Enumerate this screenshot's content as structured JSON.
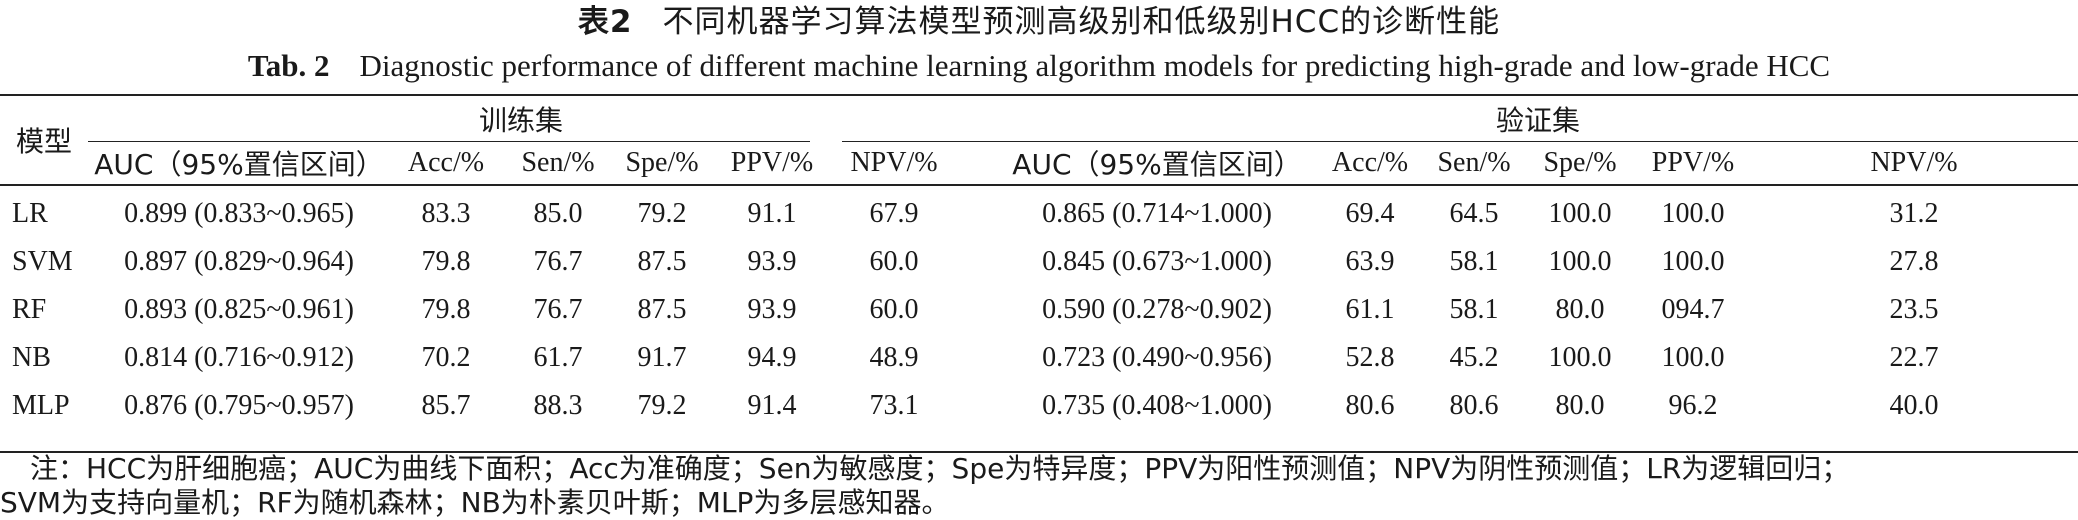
{
  "caption": {
    "cn_label": "表2",
    "cn_title": "不同机器学习算法模型预测高级别和低级别HCC的诊断性能",
    "en_label": "Tab. 2",
    "en_title": "Diagnostic performance of different machine learning algorithm models for predicting high-grade and low-grade HCC"
  },
  "table": {
    "model_header": "模型",
    "group_train": "训练集",
    "group_valid": "验证集",
    "columns": [
      "AUC（95%置信区间）",
      "Acc/%",
      "Sen/%",
      "Spe/%",
      "PPV/%",
      "NPV/%"
    ],
    "rows": [
      {
        "model": "LR",
        "train": [
          "0.899 (0.833~0.965)",
          "83.3",
          "85.0",
          "79.2",
          "91.1",
          "67.9"
        ],
        "valid": [
          "0.865 (0.714~1.000)",
          "69.4",
          "64.5",
          "100.0",
          "100.0",
          "31.2"
        ]
      },
      {
        "model": "SVM",
        "train": [
          "0.897 (0.829~0.964)",
          "79.8",
          "76.7",
          "87.5",
          "93.9",
          "60.0"
        ],
        "valid": [
          "0.845 (0.673~1.000)",
          "63.9",
          "58.1",
          "100.0",
          "100.0",
          "27.8"
        ]
      },
      {
        "model": "RF",
        "train": [
          "0.893 (0.825~0.961)",
          "79.8",
          "76.7",
          "87.5",
          "93.9",
          "60.0"
        ],
        "valid": [
          "0.590 (0.278~0.902)",
          "61.1",
          "58.1",
          "80.0",
          "094.7",
          "23.5"
        ]
      },
      {
        "model": "NB",
        "train": [
          "0.814 (0.716~0.912)",
          "70.2",
          "61.7",
          "91.7",
          "94.9",
          "48.9"
        ],
        "valid": [
          "0.723 (0.490~0.956)",
          "52.8",
          "45.2",
          "100.0",
          "100.0",
          "22.7"
        ]
      },
      {
        "model": "MLP",
        "train": [
          "0.876 (0.795~0.957)",
          "85.7",
          "88.3",
          "79.2",
          "91.4",
          "73.1"
        ],
        "valid": [
          "0.735 (0.408~1.000)",
          "80.6",
          "80.6",
          "80.0",
          "96.2",
          "40.0"
        ]
      }
    ]
  },
  "note": {
    "line1": "注：HCC为肝细胞癌；AUC为曲线下面积；Acc为准确度；Sen为敏感度；Spe为特异度；PPV为阳性预测值；NPV为阴性预测值；LR为逻辑回归；",
    "line2": "SVM为支持向量机；RF为随机森林；NB为朴素贝叶斯；MLP为多层感知器。"
  }
}
